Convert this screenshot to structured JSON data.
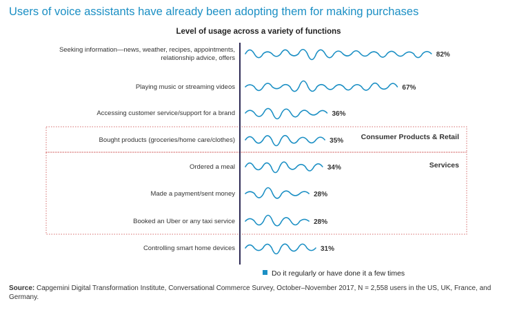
{
  "title": "Users of voice assistants have already been adopting them for making purchases",
  "subtitle": "Level of usage across a variety of functions",
  "colors": {
    "title": "#1b8fc4",
    "series": "#1b8fc4",
    "group_border": "#d46a6a"
  },
  "legend": {
    "label": "Do it regularly or have done it a few times"
  },
  "source": {
    "prefix": "Source:",
    "text": "Capgemini Digital Transformation Institute, Conversational Commerce Survey, October–November 2017, N = 2,558 users in the US, UK, France, and Germany."
  },
  "chart_data": {
    "type": "bar",
    "orientation": "horizontal",
    "mark_style": "wave",
    "title": "Users of voice assistants have already been adopting them for making purchases",
    "subtitle": "Level of usage across a variety of functions",
    "unit": "%",
    "xlim": [
      0,
      100
    ],
    "categories": [
      [
        "Seeking information—news, weather, recipes, appointments,",
        "relationship advice, offers"
      ],
      [
        "Playing music or streaming videos"
      ],
      [
        "Accessing customer service/support for a brand"
      ],
      [
        "Bought products (groceries/home care/clothes)"
      ],
      [
        "Ordered a meal"
      ],
      [
        "Made a payment/sent money"
      ],
      [
        "Booked an Uber or any taxi service"
      ],
      [
        "Controlling smart home devices"
      ]
    ],
    "values": [
      82,
      67,
      36,
      35,
      34,
      28,
      28,
      31
    ],
    "value_labels": [
      "82%",
      "67%",
      "36%",
      "35%",
      "34%",
      "28%",
      "28%",
      "31%"
    ],
    "series": [
      {
        "name": "Do it regularly or have done it a few times",
        "values": [
          82,
          67,
          36,
          35,
          34,
          28,
          28,
          31
        ]
      }
    ],
    "groups": [
      {
        "label": "Consumer Products & Retail",
        "rows": [
          3
        ]
      },
      {
        "label": "Services",
        "rows": [
          4,
          5,
          6
        ]
      }
    ]
  }
}
